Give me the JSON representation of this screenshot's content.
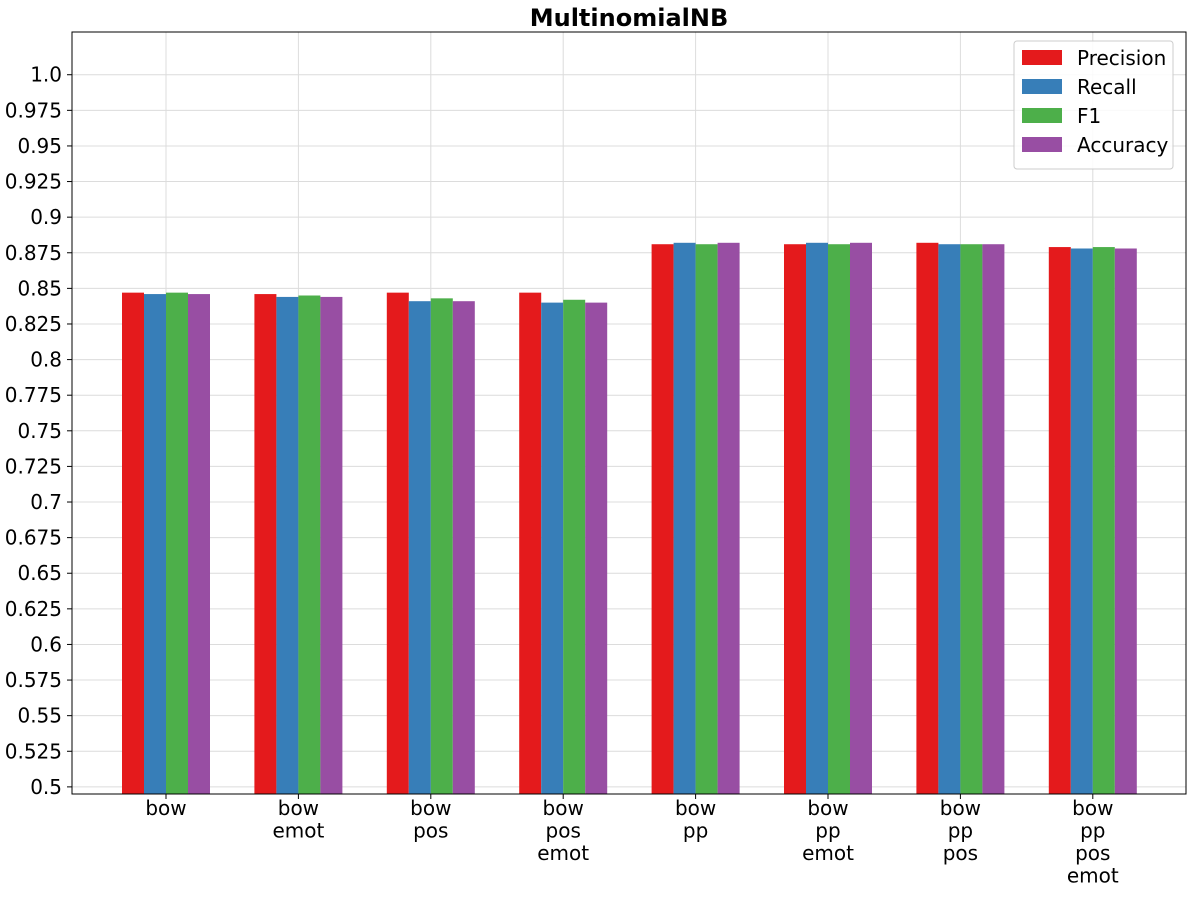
{
  "chart_data": {
    "type": "bar",
    "title": "MultinomialNB",
    "xlabel": "",
    "ylabel": "",
    "ylim": [
      0.495,
      1.03
    ],
    "yticks": [
      "0.5",
      "0.525",
      "0.55",
      "0.575",
      "0.6",
      "0.625",
      "0.65",
      "0.675",
      "0.7",
      "0.725",
      "0.75",
      "0.775",
      "0.8",
      "0.825",
      "0.85",
      "0.875",
      "0.9",
      "0.925",
      "0.95",
      "0.975",
      "1.0"
    ],
    "grid": true,
    "legend_position": "top-right",
    "categories": [
      [
        "bow"
      ],
      [
        "bow",
        "emot"
      ],
      [
        "bow",
        "pos"
      ],
      [
        "bow",
        "pos",
        "emot"
      ],
      [
        "bow",
        "pp"
      ],
      [
        "bow",
        "pp",
        "emot"
      ],
      [
        "bow",
        "pp",
        "pos"
      ],
      [
        "bow",
        "pp",
        "pos",
        "emot"
      ]
    ],
    "series": [
      {
        "name": "Precision",
        "color": "#e41a1c",
        "values": [
          0.847,
          0.846,
          0.847,
          0.847,
          0.881,
          0.881,
          0.882,
          0.879
        ]
      },
      {
        "name": "Recall",
        "color": "#377eb8",
        "values": [
          0.846,
          0.844,
          0.841,
          0.84,
          0.882,
          0.882,
          0.881,
          0.878
        ]
      },
      {
        "name": "F1",
        "color": "#4daf4a",
        "values": [
          0.847,
          0.845,
          0.843,
          0.842,
          0.881,
          0.881,
          0.881,
          0.879
        ]
      },
      {
        "name": "Accuracy",
        "color": "#984ea3",
        "values": [
          0.846,
          0.844,
          0.841,
          0.84,
          0.882,
          0.882,
          0.881,
          0.878
        ]
      }
    ]
  }
}
